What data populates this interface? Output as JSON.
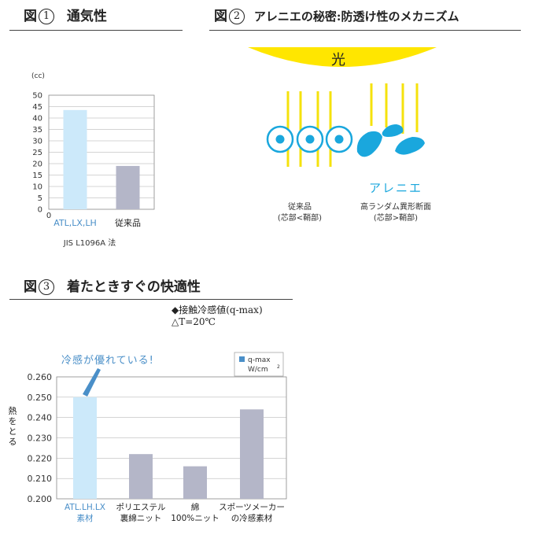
{
  "fig1": {
    "prefix": "図",
    "num": "1",
    "title": "通気性",
    "method": "JIS L1096A 法"
  },
  "fig2": {
    "prefix": "図",
    "num": "2",
    "title": "アレニエの秘密:防透け性のメカニズム",
    "light_label": "光",
    "conventional_label": "従来品",
    "conventional_sub": "(芯部<鞘部)",
    "arenie_label": "アレニエ",
    "arenie_sub1": "高ランダム異形断面",
    "arenie_sub2": "(芯部>鞘部)",
    "colors": {
      "light": "#ffe600",
      "fiber": "#1aa7dd"
    }
  },
  "fig3": {
    "prefix": "図",
    "num": "3",
    "title": "着たときすぐの快適性",
    "note1": "◆接触冷感値(q-max)",
    "note2": "△T=20℃",
    "callout": "冷感が優れている!",
    "ylabel": "熱をとる"
  },
  "chart_data": [
    {
      "type": "bar",
      "unit_label": "(cc)",
      "categories": [
        "ATL,LX,LH",
        "従来品"
      ],
      "values": [
        43.5,
        19
      ],
      "ylim": [
        0,
        50
      ],
      "yticks": [
        0,
        5,
        10,
        15,
        20,
        25,
        30,
        35,
        40,
        45,
        50
      ],
      "origin_label": "0",
      "colors": [
        "#cce9fa",
        "#b4b6c8"
      ],
      "highlight_color": "#4a8fc8"
    },
    {
      "type": "bar",
      "categories": [
        [
          "ATL.LH.LX",
          "素材"
        ],
        [
          "ポリエステル",
          "裏綿ニット"
        ],
        [
          "綿",
          "100%ニット"
        ],
        [
          "スポーツメーカー",
          "の冷感素材"
        ]
      ],
      "values": [
        0.25,
        0.222,
        0.216,
        0.244
      ],
      "ylim": [
        0.2,
        0.26
      ],
      "yticks": [
        "0.200",
        "0.210",
        "0.220",
        "0.230",
        "0.240",
        "0.250",
        "0.260"
      ],
      "legend": {
        "name": "q-max",
        "unit": "W/cm",
        "sup": "2"
      },
      "colors": [
        "#cce9fa",
        "#b4b6c8",
        "#b4b6c8",
        "#b4b6c8"
      ],
      "legend_color": "#4a8fc8",
      "highlight_color": "#4a8fc8"
    }
  ]
}
